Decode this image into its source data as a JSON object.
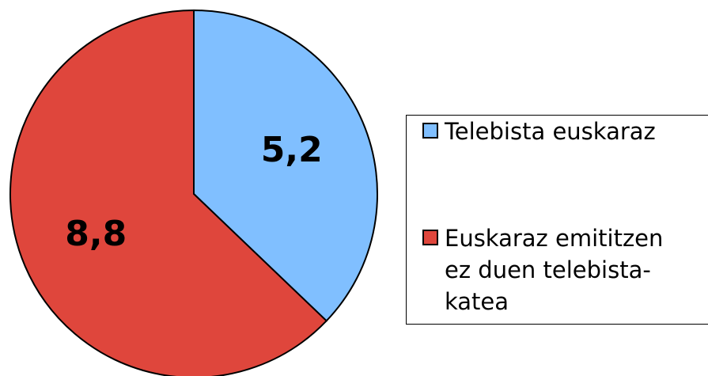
{
  "chart_data": {
    "type": "pie",
    "categories": [
      "Telebista euskaraz",
      "Euskaraz emititzen ez duen telebista-katea"
    ],
    "values": [
      5.2,
      8.8
    ],
    "value_labels": [
      "5,2",
      "8,8"
    ],
    "colors": [
      "#80bfff",
      "#df463c"
    ],
    "legend": "right"
  }
}
